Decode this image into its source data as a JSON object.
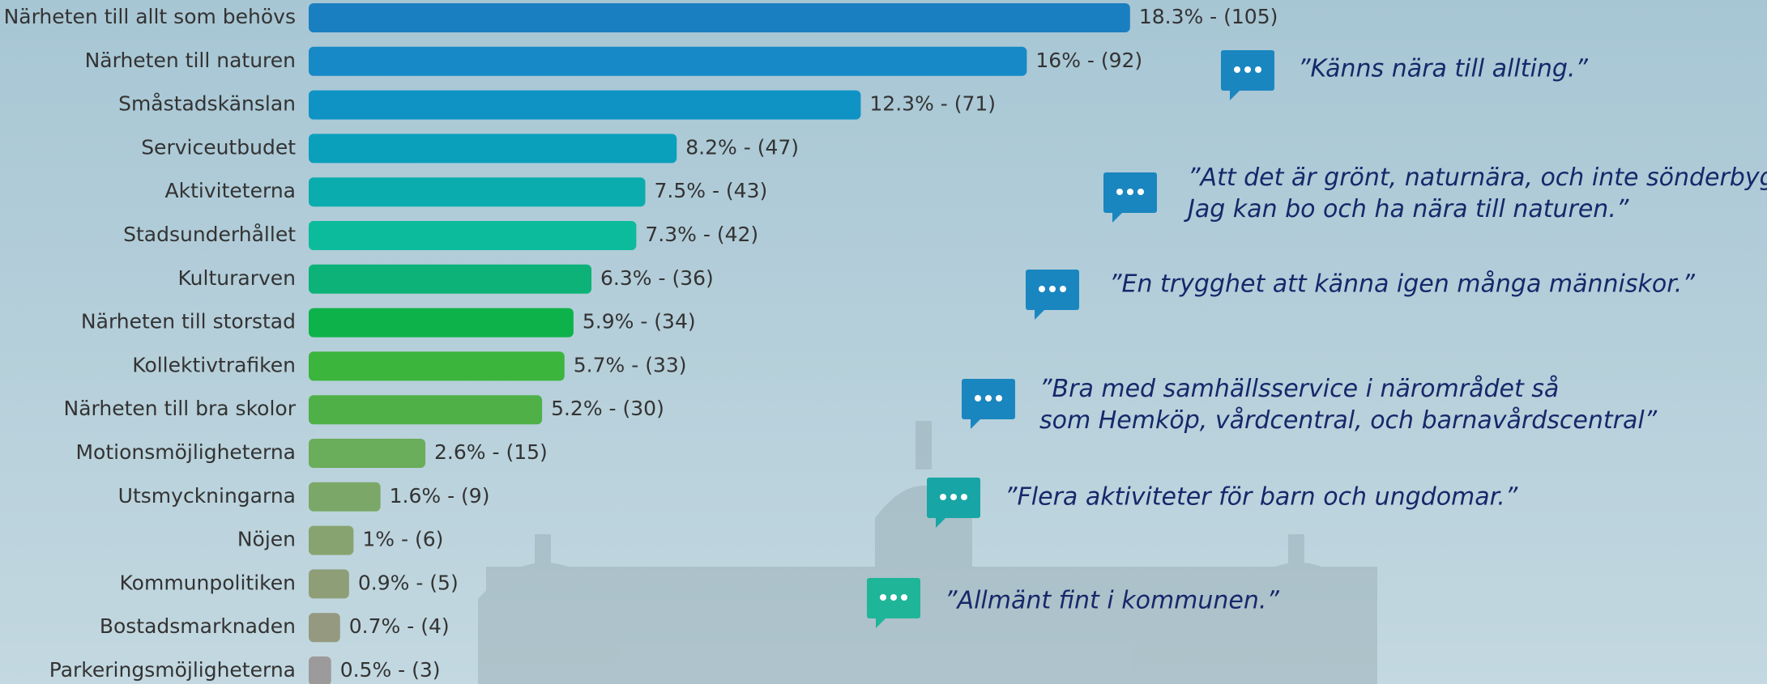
{
  "chart_data": {
    "type": "bar",
    "orientation": "horizontal",
    "categories": [
      "Närheten till allt som behövs",
      "Närheten till naturen",
      "Småstadskänslan",
      "Serviceutbudet",
      "Aktiviteterna",
      "Stadsunderhållet",
      "Kulturarven",
      "Närheten till storstad",
      "Kollektivtrafiken",
      "Närheten till bra skolor",
      "Motionsmöjligheterna",
      "Utsmyckningarna",
      "Nöjen",
      "Kommunpolitiken",
      "Bostadsmarknaden",
      "Parkeringsmöjligheterna"
    ],
    "values": [
      18.3,
      16,
      12.3,
      8.2,
      7.5,
      7.3,
      6.3,
      5.9,
      5.7,
      5.2,
      2.6,
      1.6,
      1,
      0.9,
      0.7,
      0.5
    ],
    "value_labels": [
      "18.3% - (105)",
      "16% - (92)",
      "12.3% - (71)",
      "8.2% - (47)",
      "7.5% - (43)",
      "7.3% - (42)",
      "6.3% - (36)",
      "5.9% - (34)",
      "5.7% - (33)",
      "5.2% - (30)",
      "2.6% - (15)",
      "1.6% - (9)",
      "1% - (6)",
      "0.9% - (5)",
      "0.7% - (4)",
      "0.5% - (3)"
    ],
    "colors": [
      "#1a7fc1",
      "#1789c7",
      "#0f93c4",
      "#0aa0bb",
      "#0aacad",
      "#0cbb9b",
      "#0cb277",
      "#0db34a",
      "#3cb53d",
      "#4fb048",
      "#6aad5a",
      "#7ba868",
      "#87a470",
      "#8e9f78",
      "#95997f",
      "#9c9a9a"
    ],
    "annotations": [
      {
        "lines": [
          "”Känns nära till allting.”"
        ],
        "color": "#1a86c0"
      },
      {
        "lines": [
          "”Att det är grönt, naturnära, och inte sönderbyggt.",
          "Jag kan bo och ha nära till naturen.”"
        ],
        "color": "#1a86c0"
      },
      {
        "lines": [
          "”En trygghet att känna igen många människor.”"
        ],
        "color": "#1a86c0"
      },
      {
        "lines": [
          "”Bra med samhällsservice i närområdet så",
          "som Hemköp, vårdcentral, och barnavårdscentral”"
        ],
        "color": "#1a86c0"
      },
      {
        "lines": [
          "”Flera aktiviteter för barn och ungdomar.”"
        ],
        "color": "#17a5a5"
      },
      {
        "lines": [
          "”Allmänt fint i kommunen.”"
        ],
        "color": "#1fb598"
      }
    ]
  }
}
